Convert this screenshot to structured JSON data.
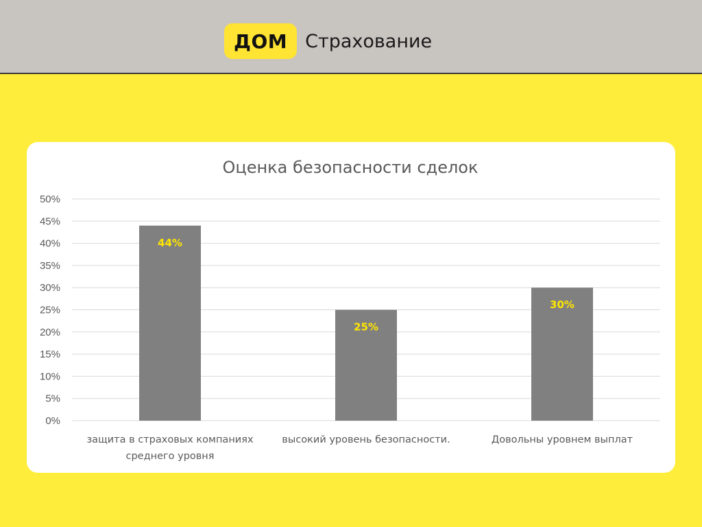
{
  "header": {
    "logo_text": "ДОМ",
    "brand_text": "Страхование"
  },
  "colors": {
    "background": "#ffed3b",
    "header": "#c8c4c0",
    "bar": "#808080",
    "data_label": "#ffe600"
  },
  "chart_data": {
    "type": "bar",
    "title": "Оценка безопасности сделок",
    "categories": [
      [
        "защита в страховых компаниях",
        "среднего уровня"
      ],
      [
        "высокий уровень безопасности."
      ],
      [
        "Довольны уровнем выплат"
      ]
    ],
    "values": [
      44,
      25,
      30
    ],
    "data_labels": [
      "44%",
      "25%",
      "30%"
    ],
    "ylim": [
      0,
      50
    ],
    "yticks": [
      "0%",
      "5%",
      "10%",
      "15%",
      "20%",
      "25%",
      "30%",
      "35%",
      "40%",
      "45%",
      "50%"
    ],
    "grid": true,
    "xlabel": "",
    "ylabel": ""
  }
}
